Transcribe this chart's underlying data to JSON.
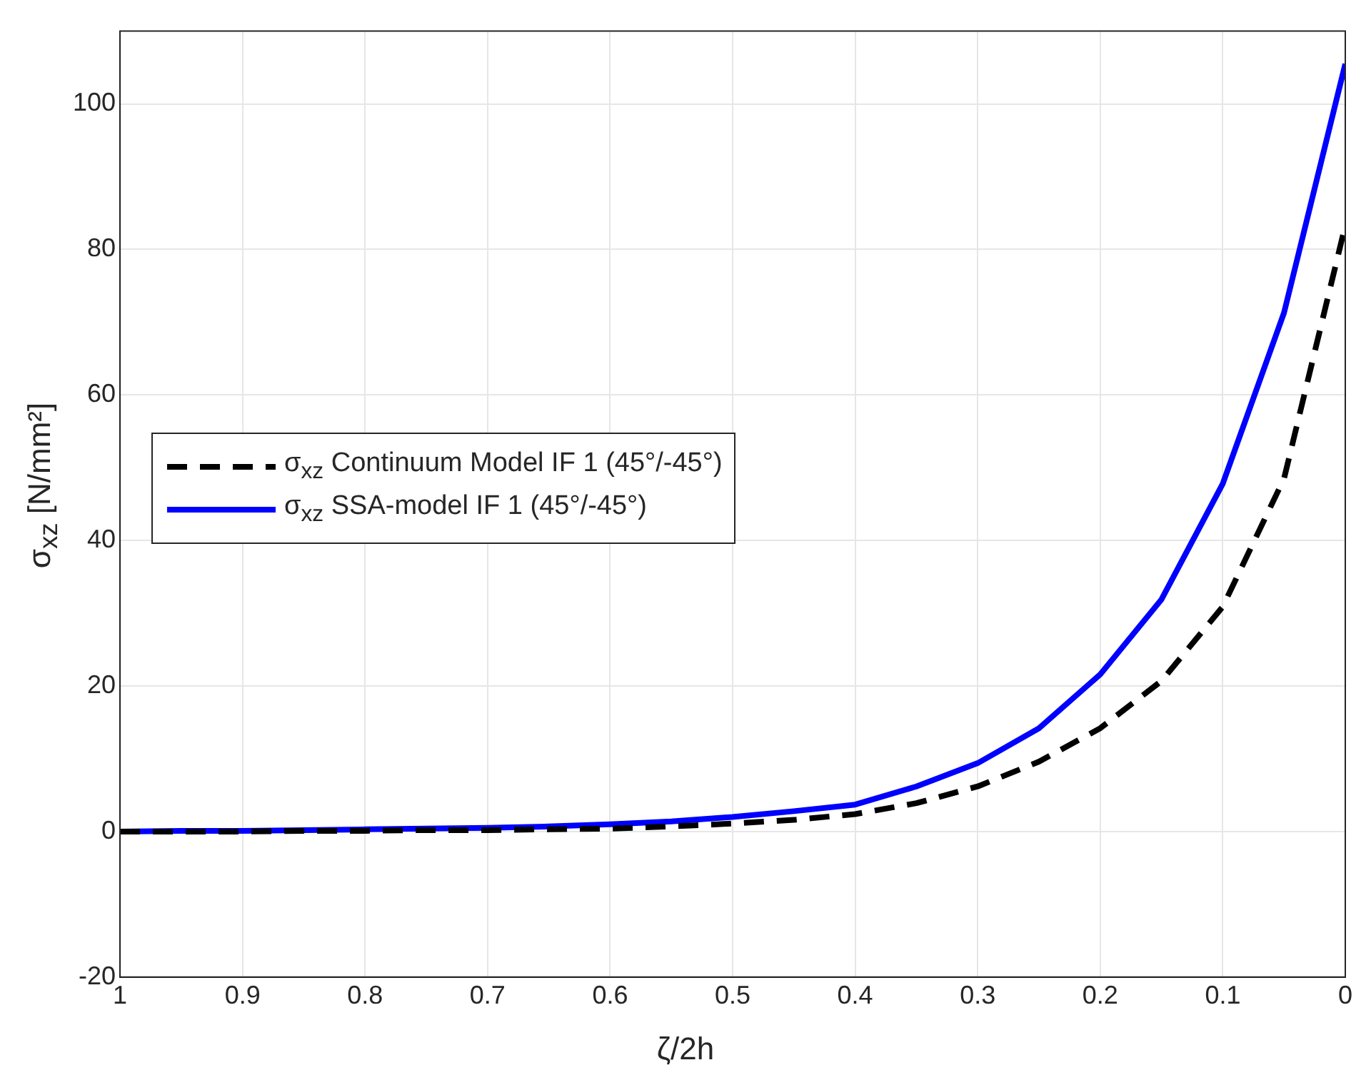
{
  "chart_data": {
    "type": "line",
    "xlabel": "ζ/2h",
    "ylabel": "σ$_{xz}$ [N/mm²]",
    "xlim": [
      1,
      0
    ],
    "xticks": [
      1,
      0.9,
      0.8,
      0.7,
      0.6,
      0.5,
      0.4,
      0.3,
      0.2,
      0.1,
      0
    ],
    "ylim": [
      -20,
      110
    ],
    "yticks": [
      -20,
      0,
      20,
      40,
      60,
      80,
      100
    ],
    "x": [
      1,
      0.95,
      0.9,
      0.85,
      0.8,
      0.75,
      0.7,
      0.65,
      0.6,
      0.55,
      0.5,
      0.45,
      0.4,
      0.35,
      0.3,
      0.25,
      0.2,
      0.15,
      0.1,
      0.05,
      0
    ],
    "series": [
      {
        "name": "σ$_{xz}$ Continuum Model IF 1 (45°/-45°)",
        "color": "#000000",
        "line_style": "dashed",
        "values": [
          0,
          0,
          0,
          0.1,
          0.1,
          0.2,
          0.2,
          0.3,
          0.4,
          0.7,
          1.1,
          1.6,
          2.4,
          3.9,
          6.2,
          9.6,
          14.2,
          20.7,
          30.9,
          48.5,
          83.3
        ]
      },
      {
        "name": "σ$_{xz}$ SSA-model IF 1 (45°/-45°)",
        "color": "#0000ff",
        "line_style": "solid",
        "values": [
          0,
          0.1,
          0.1,
          0.2,
          0.3,
          0.4,
          0.5,
          0.7,
          1.0,
          1.4,
          2.0,
          2.8,
          3.7,
          6.2,
          9.4,
          14.2,
          21.6,
          31.9,
          47.8,
          71.3,
          105.5
        ]
      }
    ],
    "grid": true,
    "legend": "left",
    "marker": "none"
  }
}
